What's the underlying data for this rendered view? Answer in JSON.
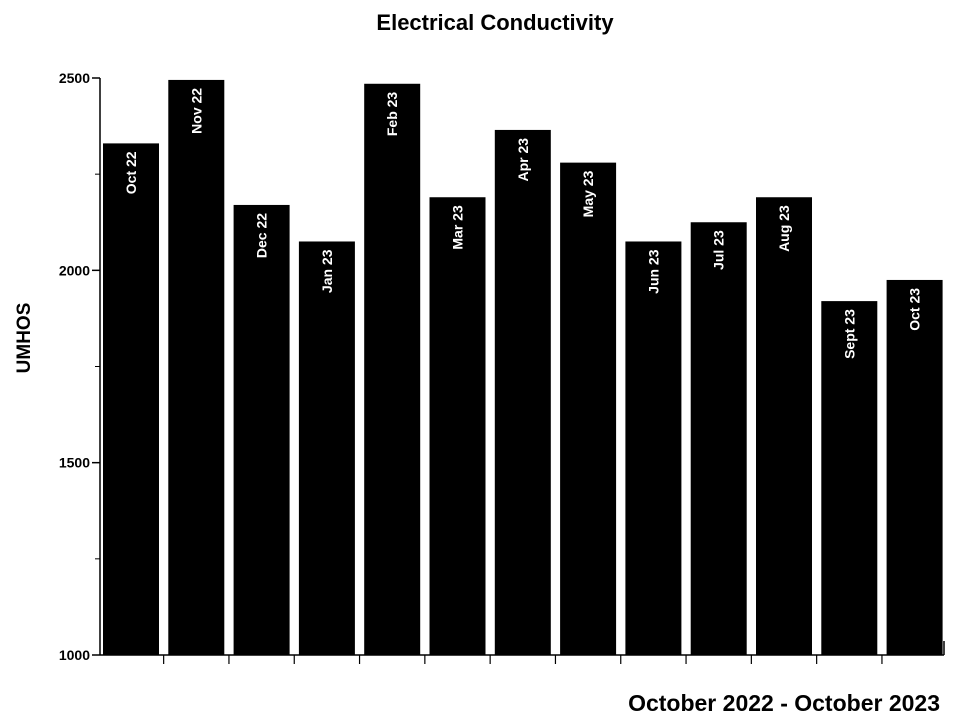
{
  "chart_data": {
    "type": "bar",
    "title": "Electrical Conductivity",
    "xlabel": "October 2022 - October 2023",
    "ylabel": "UMHOS",
    "categories": [
      "Oct 22",
      "Nov 22",
      "Dec 22",
      "Jan 23",
      "Feb 23",
      "Mar 23",
      "Apr 23",
      "May 23",
      "Jun 23",
      "Jul 23",
      "Aug 23",
      "Sept 23",
      "Oct 23"
    ],
    "values": [
      2330,
      2495,
      2170,
      2075,
      2485,
      2190,
      2365,
      2280,
      2075,
      2125,
      2190,
      1920,
      1975
    ],
    "ylim": [
      1000,
      2500
    ],
    "yticks": [
      1000,
      1500,
      2000,
      2500
    ],
    "bar_color": "#000000",
    "label_color": "#ffffff",
    "grid": false,
    "legend": "none"
  }
}
